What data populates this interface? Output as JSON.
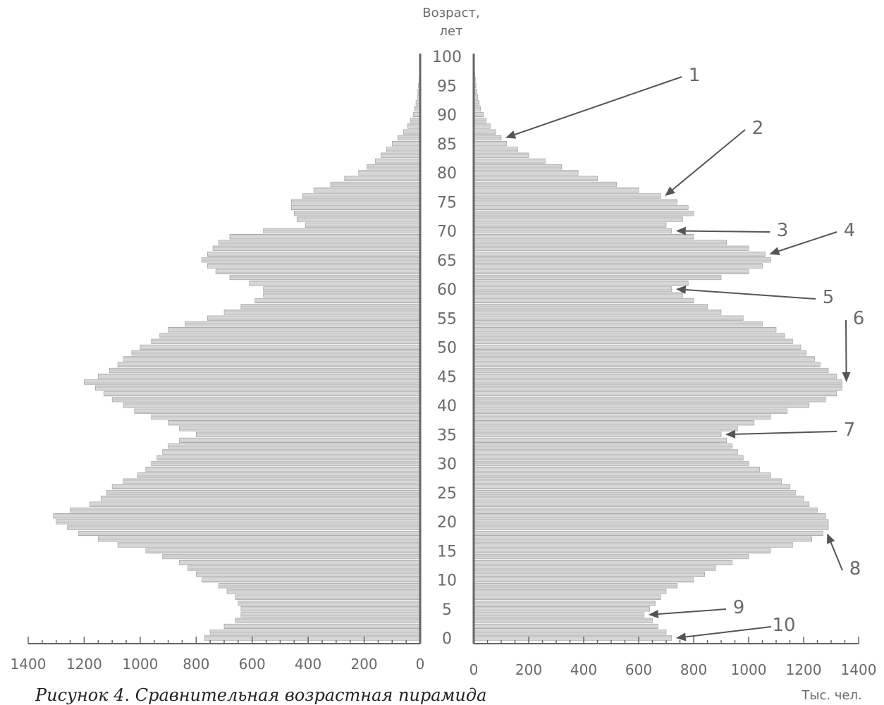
{
  "chart_data": {
    "type": "bar",
    "orientation": "horizontal-pyramid",
    "y_axis_title_line1": "Возраст,",
    "y_axis_title_line2": "лет",
    "x_axis_unit_label": "Тыс. чел.",
    "age_ticks": [
      0,
      5,
      10,
      15,
      20,
      25,
      30,
      35,
      40,
      45,
      50,
      55,
      60,
      65,
      70,
      75,
      80,
      85,
      90,
      95,
      100
    ],
    "x_ticks_left": [
      1400,
      1200,
      1000,
      800,
      600,
      400,
      200,
      0
    ],
    "x_ticks_right": [
      0,
      200,
      400,
      600,
      800,
      1000,
      1200,
      1400
    ],
    "xlim": [
      0,
      1400
    ],
    "ylim": [
      0,
      100
    ],
    "ages": [
      0,
      1,
      2,
      3,
      4,
      5,
      6,
      7,
      8,
      9,
      10,
      11,
      12,
      13,
      14,
      15,
      16,
      17,
      18,
      19,
      20,
      21,
      22,
      23,
      24,
      25,
      26,
      27,
      28,
      29,
      30,
      31,
      32,
      33,
      34,
      35,
      36,
      37,
      38,
      39,
      40,
      41,
      42,
      43,
      44,
      45,
      46,
      47,
      48,
      49,
      50,
      51,
      52,
      53,
      54,
      55,
      56,
      57,
      58,
      59,
      60,
      61,
      62,
      63,
      64,
      65,
      66,
      67,
      68,
      69,
      70,
      71,
      72,
      73,
      74,
      75,
      76,
      77,
      78,
      79,
      80,
      81,
      82,
      83,
      84,
      85,
      86,
      87,
      88,
      89,
      90,
      91,
      92,
      93,
      94,
      95,
      96,
      97,
      98,
      99,
      100
    ],
    "series": [
      {
        "side": "left",
        "values": [
          770,
          750,
          700,
          660,
          640,
          640,
          650,
          660,
          690,
          720,
          780,
          800,
          830,
          860,
          920,
          980,
          1080,
          1150,
          1220,
          1260,
          1300,
          1310,
          1250,
          1180,
          1140,
          1120,
          1100,
          1060,
          1010,
          980,
          960,
          940,
          920,
          900,
          860,
          800,
          860,
          900,
          960,
          1020,
          1060,
          1100,
          1130,
          1160,
          1200,
          1150,
          1110,
          1080,
          1060,
          1030,
          1000,
          960,
          930,
          900,
          840,
          760,
          700,
          640,
          590,
          560,
          560,
          610,
          680,
          730,
          760,
          780,
          760,
          740,
          720,
          680,
          560,
          410,
          440,
          450,
          460,
          460,
          420,
          380,
          320,
          270,
          220,
          190,
          160,
          140,
          120,
          100,
          80,
          60,
          45,
          35,
          25,
          20,
          15,
          10,
          8,
          6,
          4,
          3,
          2,
          1,
          1
        ]
      },
      {
        "side": "right",
        "values": [
          720,
          700,
          670,
          650,
          620,
          640,
          660,
          680,
          700,
          740,
          800,
          840,
          880,
          940,
          1000,
          1080,
          1160,
          1230,
          1270,
          1290,
          1290,
          1280,
          1250,
          1220,
          1200,
          1170,
          1150,
          1120,
          1080,
          1040,
          1000,
          980,
          960,
          940,
          920,
          900,
          960,
          1020,
          1080,
          1140,
          1220,
          1280,
          1320,
          1340,
          1340,
          1320,
          1290,
          1260,
          1240,
          1210,
          1190,
          1160,
          1130,
          1100,
          1050,
          980,
          900,
          850,
          800,
          760,
          720,
          780,
          900,
          1000,
          1050,
          1080,
          1060,
          1000,
          920,
          800,
          720,
          700,
          760,
          800,
          780,
          740,
          680,
          600,
          520,
          450,
          380,
          320,
          260,
          200,
          160,
          120,
          100,
          80,
          60,
          45,
          35,
          25,
          20,
          15,
          10,
          8,
          6,
          4,
          3,
          2,
          1
        ]
      }
    ],
    "annotations": [
      {
        "label": "1",
        "age": 86,
        "side": "right"
      },
      {
        "label": "2",
        "age": 76,
        "side": "right"
      },
      {
        "label": "3",
        "age": 70,
        "side": "right"
      },
      {
        "label": "4",
        "age": 66,
        "side": "right"
      },
      {
        "label": "5",
        "age": 60,
        "side": "right"
      },
      {
        "label": "6",
        "age": 44,
        "side": "right"
      },
      {
        "label": "7",
        "age": 35,
        "side": "right"
      },
      {
        "label": "8",
        "age": 18,
        "side": "right"
      },
      {
        "label": "9",
        "age": 4,
        "side": "right"
      },
      {
        "label": "10",
        "age": 0,
        "side": "right"
      }
    ]
  },
  "caption": "Рисунок 4. Сравнительная возрастная пирамида"
}
